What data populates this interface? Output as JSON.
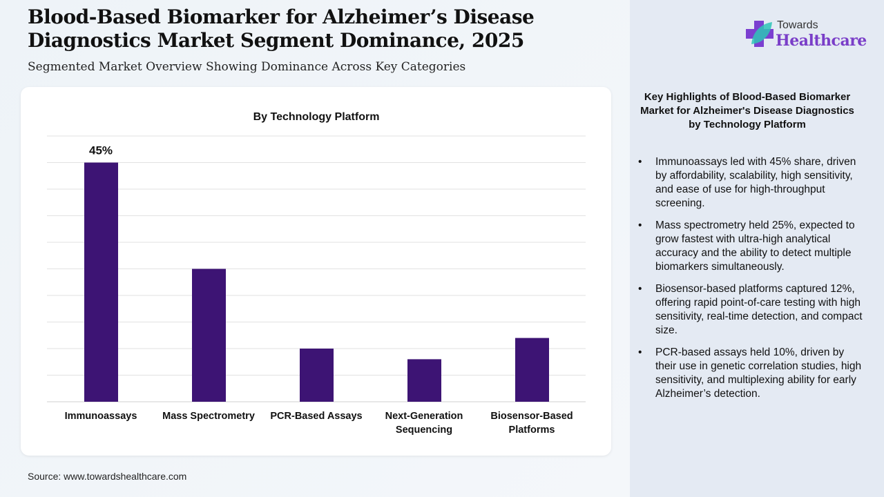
{
  "title": "Blood-Based Biomarker for Alzheimer’s Disease Diagnostics Market  Segment Dominance, 2025",
  "subtitle": "Segmented Market Overview Showing Dominance Across Key Categories",
  "source": "Source: www.towardshealthcare.com",
  "logo": {
    "line1": "Towards",
    "line2": "Healthcare"
  },
  "highlights": {
    "title": "Key Highlights of Blood-Based Biomarker Market for Alzheimer's Disease Diagnostics by Technology Platform",
    "items": [
      "Immunoassays led with 45% share, driven by affordability, scalability, high sensitivity, and ease of use for high-throughput screening.",
      "Mass spectrometry held 25%, expected to grow fastest with ultra-high analytical accuracy and the ability to detect multiple biomarkers simultaneously.",
      "Biosensor-based platforms captured 12%, offering rapid point-of-care testing with high sensitivity, real-time detection, and compact size.",
      "PCR-based assays held 10%, driven by their use in genetic correlation studies, high sensitivity, and multiplexing ability for early Alzheimer’s detection."
    ]
  },
  "chart_data": {
    "type": "bar",
    "title": "By Technology Platform",
    "categories": [
      "Immunoassays",
      "Mass Spectrometry",
      "PCR-Based Assays",
      "Next-Generation Sequencing",
      "Biosensor-Based Platforms"
    ],
    "category_lines": [
      [
        "Immunoassays"
      ],
      [
        "Mass Spectrometry"
      ],
      [
        "PCR-Based Assays"
      ],
      [
        "Next-Generation",
        "Sequencing"
      ],
      [
        "Biosensor-Based",
        "Platforms"
      ]
    ],
    "values": [
      45,
      25,
      10,
      8,
      12
    ],
    "data_labels": [
      "45%",
      "",
      "",
      "",
      ""
    ],
    "ylim": [
      0,
      50
    ],
    "grid_step": 5,
    "grid": true,
    "bar_color": "#3d1474"
  }
}
